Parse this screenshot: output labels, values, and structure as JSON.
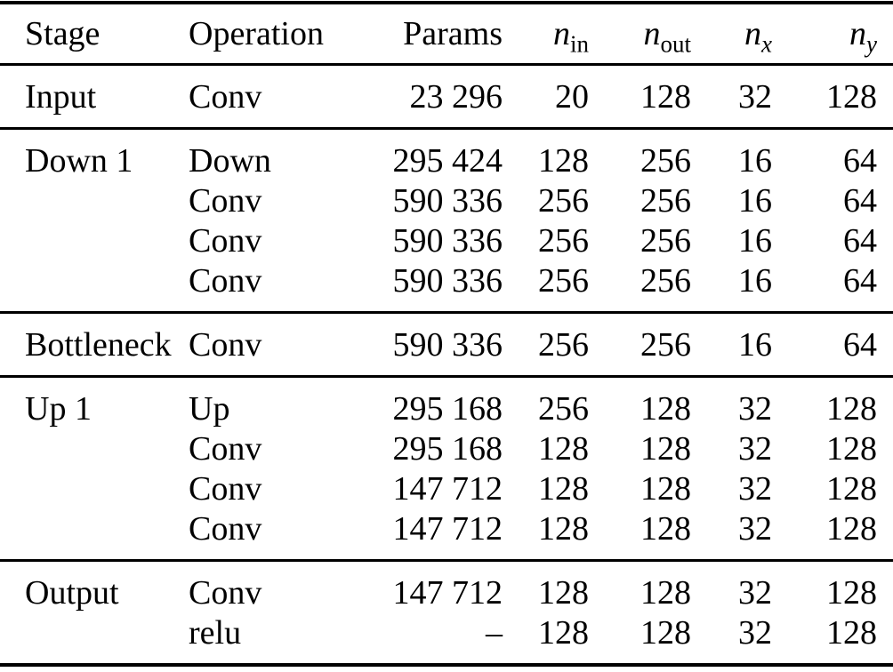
{
  "colors": {
    "text": "#000000",
    "rule": "#000000",
    "background": "#ffffff"
  },
  "table": {
    "description": "Network architecture stage table",
    "columns": [
      {
        "key": "stage",
        "label": "Stage"
      },
      {
        "key": "operation",
        "label": "Operation"
      },
      {
        "key": "params",
        "label": "Params"
      },
      {
        "key": "n_in",
        "base": "n",
        "sub": "in"
      },
      {
        "key": "n_out",
        "base": "n",
        "sub": "out"
      },
      {
        "key": "n_x",
        "base": "n",
        "sub": "x"
      },
      {
        "key": "n_y",
        "base": "n",
        "sub": "y"
      }
    ],
    "sections": [
      {
        "rows": [
          [
            "Input",
            "Conv",
            "23 296",
            "20",
            "128",
            "32",
            "128"
          ]
        ]
      },
      {
        "rows": [
          [
            "Down 1",
            "Down",
            "295 424",
            "128",
            "256",
            "16",
            "64"
          ],
          [
            "",
            "Conv",
            "590 336",
            "256",
            "256",
            "16",
            "64"
          ],
          [
            "",
            "Conv",
            "590 336",
            "256",
            "256",
            "16",
            "64"
          ],
          [
            "",
            "Conv",
            "590 336",
            "256",
            "256",
            "16",
            "64"
          ]
        ]
      },
      {
        "rows": [
          [
            "Bottleneck",
            "Conv",
            "590 336",
            "256",
            "256",
            "16",
            "64"
          ]
        ]
      },
      {
        "rows": [
          [
            "Up 1",
            "Up",
            "295 168",
            "256",
            "128",
            "32",
            "128"
          ],
          [
            "",
            "Conv",
            "295 168",
            "128",
            "128",
            "32",
            "128"
          ],
          [
            "",
            "Conv",
            "147 712",
            "128",
            "128",
            "32",
            "128"
          ],
          [
            "",
            "Conv",
            "147 712",
            "128",
            "128",
            "32",
            "128"
          ]
        ]
      },
      {
        "rows": [
          [
            "Output",
            "Conv",
            "147 712",
            "128",
            "128",
            "32",
            "128"
          ],
          [
            "",
            "relu",
            "–",
            "128",
            "128",
            "32",
            "128"
          ]
        ]
      }
    ]
  }
}
